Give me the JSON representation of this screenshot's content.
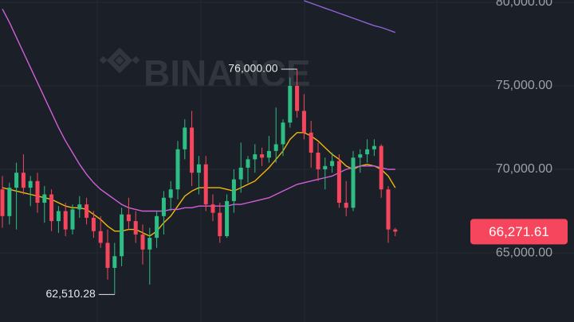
{
  "chart_data": {
    "type": "candlestick",
    "watermark": "BINANCE",
    "open": [
      68800,
      67200,
      68900,
      69800,
      68900,
      69300,
      68000,
      68500,
      66900,
      67500,
      66400,
      67600,
      67900,
      67100,
      66300,
      65600,
      64100,
      64800,
      67300,
      66900,
      66100,
      65200,
      65900,
      67200,
      68300,
      68800,
      71200,
      72500,
      69800,
      70300,
      67900,
      67400,
      66000,
      68100,
      69400,
      70100,
      70600,
      70900,
      70700,
      71100,
      71500,
      72800,
      75000,
      73500,
      72200,
      71000,
      70000,
      70200,
      70500,
      68000,
      67700,
      70700,
      70900,
      71200,
      71400,
      68800,
      66400
    ],
    "high": [
      69600,
      69200,
      70400,
      70900,
      69600,
      69800,
      69000,
      68800,
      67800,
      68000,
      67900,
      68400,
      68300,
      67500,
      67200,
      66400,
      65600,
      67700,
      68300,
      67500,
      66700,
      66500,
      67500,
      68700,
      69300,
      71700,
      73000,
      73500,
      70800,
      70800,
      68500,
      68000,
      68500,
      70000,
      71600,
      70800,
      71500,
      71300,
      72000,
      73700,
      73000,
      75500,
      76000,
      74500,
      72900,
      71600,
      70700,
      71000,
      70900,
      69300,
      71100,
      71200,
      71800,
      71800,
      71500,
      69000,
      66500
    ],
    "low": [
      66500,
      66700,
      66400,
      68500,
      67800,
      67400,
      66800,
      66300,
      66200,
      66000,
      66100,
      67100,
      66700,
      65900,
      65300,
      63400,
      62510.28,
      64200,
      66400,
      65600,
      64300,
      63100,
      65300,
      66100,
      67500,
      68200,
      70600,
      69000,
      68500,
      67500,
      66900,
      65600,
      65900,
      67400,
      68600,
      69200,
      69800,
      70200,
      70400,
      70400,
      70800,
      72500,
      73100,
      71800,
      70100,
      69300,
      68800,
      69800,
      67700,
      67200,
      67500,
      69800,
      70400,
      70800,
      68300,
      65600,
      66000
    ],
    "close": [
      67200,
      68900,
      69800,
      68900,
      69300,
      68000,
      68500,
      66900,
      67500,
      66400,
      67600,
      67900,
      67100,
      66300,
      65600,
      64100,
      64800,
      67300,
      66900,
      66100,
      65200,
      65900,
      67200,
      68300,
      68800,
      71200,
      72500,
      69800,
      70300,
      67900,
      67400,
      66000,
      68100,
      69400,
      70100,
      70600,
      70900,
      70700,
      71100,
      71500,
      72800,
      75000,
      73500,
      72200,
      71000,
      70000,
      70200,
      70500,
      68000,
      67700,
      70700,
      70900,
      71200,
      71400,
      68800,
      66400,
      66271.61
    ],
    "up_color": "#2ebd85",
    "down_color": "#f6465d",
    "moving_averages": [
      {
        "color": "#f0b90b",
        "values": [
          68900,
          68800,
          68700,
          68600,
          68500,
          68400,
          68300,
          68200,
          68000,
          67800,
          67700,
          67700,
          67600,
          67300,
          67000,
          66600,
          66300,
          66300,
          66400,
          66400,
          66200,
          66000,
          66300,
          66800,
          67200,
          67800,
          68400,
          68700,
          68900,
          68900,
          68900,
          68900,
          68800,
          68700,
          68900,
          69100,
          69300,
          69700,
          70100,
          70600,
          71100,
          71800,
          72200,
          72200,
          72000,
          71700,
          71300,
          70900,
          70600,
          70200,
          70000,
          70200,
          70300,
          70200,
          70000,
          69600,
          68900
        ]
      },
      {
        "color": "#d05fd8",
        "values": [
          79600,
          78800,
          77900,
          77000,
          76100,
          75200,
          74300,
          73400,
          72500,
          71700,
          71000,
          70300,
          69700,
          69200,
          68800,
          68500,
          68200,
          67900,
          67700,
          67600,
          67500,
          67500,
          67500,
          67500,
          67600,
          67600,
          67700,
          67700,
          67800,
          67800,
          67800,
          67800,
          67800,
          67900,
          67900,
          68000,
          68100,
          68200,
          68300,
          68500,
          68700,
          68900,
          69100,
          69200,
          69300,
          69400,
          69500,
          69600,
          69800,
          70000,
          70100,
          70200,
          70200,
          70200,
          70100,
          70000,
          70000
        ]
      },
      {
        "color": "#8e63d9",
        "values": [
          null,
          null,
          null,
          null,
          null,
          null,
          null,
          null,
          null,
          null,
          null,
          null,
          null,
          null,
          null,
          null,
          null,
          null,
          null,
          null,
          null,
          null,
          null,
          null,
          null,
          null,
          null,
          null,
          null,
          null,
          null,
          null,
          null,
          null,
          null,
          null,
          null,
          null,
          null,
          null,
          null,
          null,
          null,
          80100,
          79950,
          79800,
          79650,
          79500,
          79350,
          79200,
          79050,
          78900,
          78750,
          78600,
          78500,
          78350,
          78200
        ]
      }
    ],
    "ylim": [
      60860,
      80140
    ],
    "yticks": [
      {
        "value": 80000,
        "label": "80,000.00"
      },
      {
        "value": 75000,
        "label": "75,000.00"
      },
      {
        "value": 70000,
        "label": "70,000.00"
      },
      {
        "value": 65000,
        "label": "65,000.00"
      }
    ],
    "grid": true,
    "annotations": [
      {
        "value": 76000,
        "label": "76,000.00",
        "index": 42
      },
      {
        "value": 62510.28,
        "label": "62,510.28",
        "index": 16
      }
    ],
    "last_price": {
      "value": 66271.61,
      "label": "66,271.61",
      "color": "#f6465d"
    }
  }
}
